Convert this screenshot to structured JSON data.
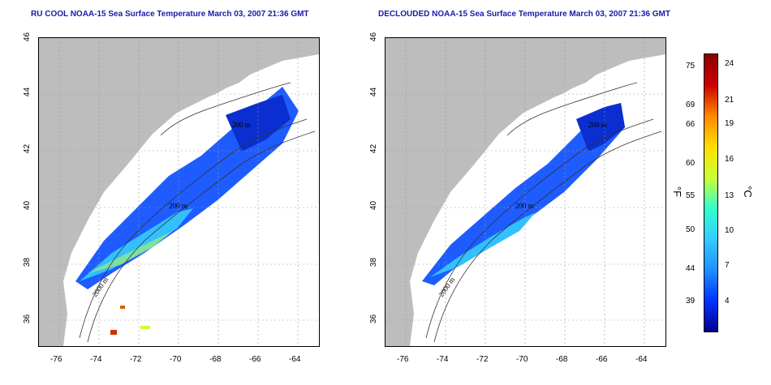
{
  "titles": {
    "left": "RU COOL NOAA-15 Sea Surface Temperature March 03, 2007 21:36 GMT",
    "right": "DECLOUDED NOAA-15 Sea Surface Temperature March 03, 2007 21:36 GMT"
  },
  "axes": {
    "x_ticks": [
      "-76",
      "-74",
      "-72",
      "-70",
      "-68",
      "-66",
      "-64"
    ],
    "y_ticks": [
      "36",
      "38",
      "40",
      "42",
      "44",
      "46"
    ]
  },
  "contour_labels": [
    "200 m",
    "200 m",
    "2000 m"
  ],
  "colorbar": {
    "fahrenheit_ticks": [
      "75",
      "69",
      "66",
      "60",
      "55",
      "50",
      "44",
      "39"
    ],
    "celsius_ticks": [
      "24",
      "21",
      "19",
      "16",
      "13",
      "10",
      "7",
      "4"
    ],
    "unit_f": "°F",
    "unit_c": "°C",
    "colors": [
      "#00008b",
      "#0033ff",
      "#1e90ff",
      "#33ccff",
      "#33ffcc",
      "#ccff33",
      "#ffdd00",
      "#ff8800",
      "#cc0000",
      "#8b0000"
    ]
  }
}
